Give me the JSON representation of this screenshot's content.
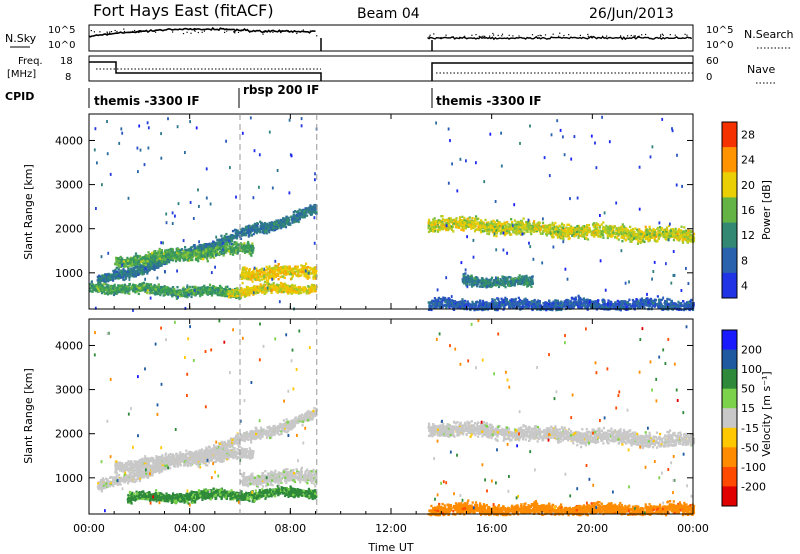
{
  "header": {
    "station": "Fort Hays East (fitACF)",
    "beam": "Beam 04",
    "date": "26/Jun/2013"
  },
  "panels": {
    "nsky_label": "N.Sky",
    "nsearch_label": "N.Search",
    "noise_ticks": [
      "10^5",
      "10^0"
    ],
    "freq_label_line1": "Freq.",
    "freq_label_line2": "[MHz]",
    "freq_ticks": [
      "18",
      "8"
    ],
    "nave_label": "Nave",
    "nave_ticks": [
      "60",
      "0"
    ],
    "cpid_label": "CPID",
    "cpid_segments": [
      {
        "start": 0.0,
        "end": 6.0,
        "label": "themis -3300 IF"
      },
      {
        "start": 6.0,
        "end": 9.05,
        "label": "rbsp 200 IF"
      },
      {
        "start": 13.45,
        "end": 24.0,
        "label": "themis -3300 IF"
      }
    ]
  },
  "colorbars": {
    "power": {
      "label": "Power [dB]",
      "ticks": [
        "28",
        "24",
        "20",
        "16",
        "12",
        "8",
        "4"
      ]
    },
    "velocity": {
      "label": "Velocity [m s⁻¹]",
      "ticks": [
        "200",
        "100",
        "50",
        "15",
        "-15",
        "-50",
        "-100",
        "-200"
      ]
    }
  },
  "chart_data": [
    {
      "type": "heatmap",
      "name": "Power",
      "ylabel": "Slant Range [km]",
      "xlabel": "",
      "x_ticks": [
        "00:00",
        "04:00",
        "08:00",
        "12:00",
        "16:00",
        "20:00",
        "00:00"
      ],
      "xlim": [
        0,
        24
      ],
      "ylim": [
        180,
        4600
      ],
      "y_ticks": [
        1000,
        2000,
        3000,
        4000
      ],
      "zlim": [
        0,
        30
      ],
      "data_gap": [
        9.05,
        13.45
      ],
      "scatter_bands": [
        {
          "t0": 0.3,
          "t1": 9.0,
          "r_start": 800,
          "r_end": 2450,
          "width": 170,
          "power": 9
        },
        {
          "t0": 1.0,
          "t1": 6.5,
          "r_start": 1280,
          "r_end": 1580,
          "width": 180,
          "power": 14
        },
        {
          "t0": 6.0,
          "t1": 9.0,
          "r_start": 1000,
          "r_end": 1050,
          "width": 220,
          "power": 20
        },
        {
          "t0": 0.0,
          "t1": 6.0,
          "r_start": 700,
          "r_end": 560,
          "width": 150,
          "power": 13
        },
        {
          "t0": 5.5,
          "t1": 9.0,
          "r_start": 600,
          "r_end": 700,
          "width": 140,
          "power": 19
        },
        {
          "t0": 13.45,
          "t1": 24.0,
          "r_start": 2150,
          "r_end": 1850,
          "width": 230,
          "power": 18
        },
        {
          "t0": 14.8,
          "t1": 17.6,
          "r_start": 850,
          "r_end": 800,
          "width": 160,
          "power": 10
        },
        {
          "t0": 13.45,
          "t1": 24.0,
          "r_start": 300,
          "r_end": 300,
          "width": 180,
          "power": 6
        }
      ]
    },
    {
      "type": "heatmap",
      "name": "Velocity",
      "ylabel": "Slant Range [km]",
      "xlabel": "Time UT",
      "x_ticks": [
        "00:00",
        "04:00",
        "08:00",
        "12:00",
        "16:00",
        "20:00",
        "00:00"
      ],
      "xlim": [
        0,
        24
      ],
      "ylim": [
        180,
        4600
      ],
      "y_ticks": [
        1000,
        2000,
        3000,
        4000
      ],
      "zlim": [
        -250,
        250
      ],
      "data_gap": [
        9.05,
        13.45
      ],
      "scatter_bands": [
        {
          "t0": 0.3,
          "t1": 9.0,
          "r_start": 800,
          "r_end": 2450,
          "width": 170,
          "velocity": 0
        },
        {
          "t0": 1.0,
          "t1": 6.5,
          "r_start": 1280,
          "r_end": 1580,
          "width": 180,
          "velocity": 0
        },
        {
          "t0": 6.0,
          "t1": 9.0,
          "r_start": 1000,
          "r_end": 1050,
          "width": 220,
          "velocity": 5
        },
        {
          "t0": 1.5,
          "t1": 9.0,
          "r_start": 560,
          "r_end": 700,
          "width": 150,
          "velocity": 40
        },
        {
          "t0": 13.45,
          "t1": 24.0,
          "r_start": 2150,
          "r_end": 1850,
          "width": 230,
          "velocity": 0
        },
        {
          "t0": 13.45,
          "t1": 24.0,
          "r_start": 300,
          "r_end": 300,
          "width": 180,
          "velocity": -60
        }
      ]
    }
  ]
}
